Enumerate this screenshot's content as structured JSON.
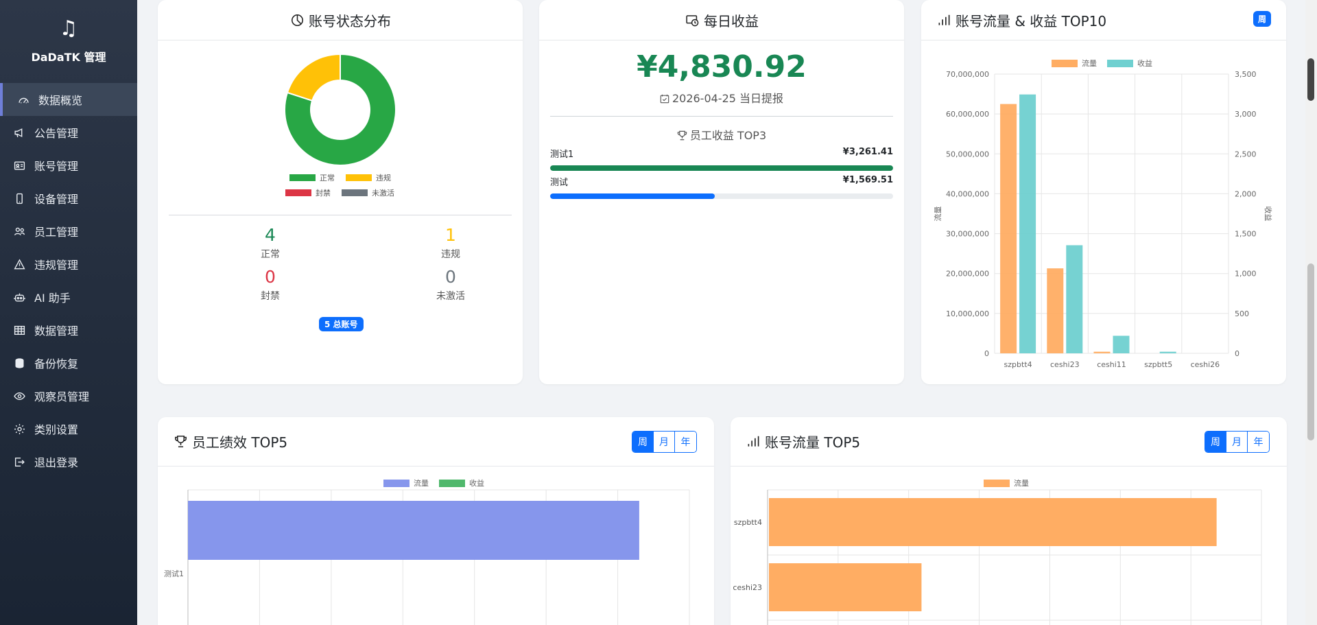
{
  "app": {
    "brand": "DaDaTK 管理"
  },
  "sidebar": {
    "items": [
      {
        "label": "数据概览",
        "icon": "dashboard-icon",
        "active": true
      },
      {
        "label": "公告管理",
        "icon": "megaphone-icon"
      },
      {
        "label": "账号管理",
        "icon": "id-card-icon"
      },
      {
        "label": "设备管理",
        "icon": "phone-icon"
      },
      {
        "label": "员工管理",
        "icon": "people-icon"
      },
      {
        "label": "违规管理",
        "icon": "warning-icon"
      },
      {
        "label": "AI 助手",
        "icon": "robot-icon"
      },
      {
        "label": "数据管理",
        "icon": "table-icon"
      },
      {
        "label": "备份恢复",
        "icon": "database-icon"
      },
      {
        "label": "观察员管理",
        "icon": "eye-icon"
      },
      {
        "label": "类别设置",
        "icon": "gear-icon"
      },
      {
        "label": "退出登录",
        "icon": "logout-icon"
      }
    ]
  },
  "status_card": {
    "title": "账号状态分布",
    "legend": [
      {
        "label": "正常",
        "color": "#28a745"
      },
      {
        "label": "违规",
        "color": "#ffc107"
      },
      {
        "label": "封禁",
        "color": "#dc3545"
      },
      {
        "label": "未激活",
        "color": "#6c757d"
      }
    ],
    "stats": [
      {
        "value": "4",
        "label": "正常",
        "color": "#198754"
      },
      {
        "value": "1",
        "label": "违规",
        "color": "#ffc107"
      },
      {
        "value": "0",
        "label": "封禁",
        "color": "#dc3545"
      },
      {
        "value": "0",
        "label": "未激活",
        "color": "#6c757d"
      }
    ],
    "total_badge": "5 总账号"
  },
  "daily_card": {
    "title": "每日收益",
    "amount": "¥4,830.92",
    "withdraw_text": "2026-04-25 当日提报",
    "top3_title": "员工收益 TOP3",
    "employees": [
      {
        "name": "测试1",
        "value": "¥3,261.41",
        "progress": 1.0,
        "color": "#198754"
      },
      {
        "name": "测试",
        "value": "¥1,569.51",
        "progress": 0.48,
        "color": "#0d6efd"
      }
    ]
  },
  "top10_card": {
    "title": "账号流量 & 收益 TOP10",
    "period": "周"
  },
  "perf_card": {
    "title": "员工绩效 TOP5",
    "periods": [
      "周",
      "月",
      "年"
    ],
    "active_period": "周"
  },
  "traffic_card": {
    "title": "账号流量 TOP5",
    "periods": [
      "周",
      "月",
      "年"
    ],
    "active_period": "周"
  },
  "chart_data": [
    {
      "type": "pie",
      "title": "账号状态分布",
      "categories": [
        "正常",
        "违规",
        "封禁",
        "未激活"
      ],
      "values": [
        4,
        1,
        0,
        0
      ],
      "colors": [
        "#28a745",
        "#ffc107",
        "#dc3545",
        "#6c757d"
      ]
    },
    {
      "type": "bar",
      "title": "账号流量 & 收益 TOP10",
      "categories": [
        "szpbtt4",
        "ceshi23",
        "ceshi11",
        "szpbtt5",
        "ceshi26"
      ],
      "series": [
        {
          "name": "流量",
          "axis": "left",
          "values": [
            62500000,
            21300000,
            400000,
            0,
            0
          ],
          "color": "#ffad63"
        },
        {
          "name": "收益",
          "axis": "right",
          "values": [
            3245,
            1355,
            220,
            20,
            0
          ],
          "color": "#6fd0d0"
        }
      ],
      "ylabel": "流量",
      "y2label": "收益",
      "ylim": [
        0,
        70000000
      ],
      "y2lim": [
        0,
        3500
      ],
      "yticks": [
        "0",
        "10,000,000",
        "20,000,000",
        "30,000,000",
        "40,000,000",
        "50,000,000",
        "60,000,000",
        "70,000,000"
      ],
      "y2ticks": [
        "0",
        "500",
        "1,000",
        "1,500",
        "2,000",
        "2,500",
        "3,000",
        "3,500"
      ]
    },
    {
      "type": "bar",
      "orientation": "horizontal",
      "title": "员工绩效 TOP5",
      "categories": [
        "测试1"
      ],
      "series": [
        {
          "name": "流量",
          "values": [
            0.9
          ],
          "color": "#8696ec"
        },
        {
          "name": "收益",
          "values": [
            0
          ],
          "color": "#50b86c"
        }
      ]
    },
    {
      "type": "bar",
      "orientation": "horizontal",
      "title": "账号流量 TOP5",
      "categories": [
        "szpbtt4",
        "ceshi23"
      ],
      "series": [
        {
          "name": "流量",
          "values": [
            62500000,
            21300000
          ],
          "color": "#ffad63"
        }
      ]
    }
  ]
}
